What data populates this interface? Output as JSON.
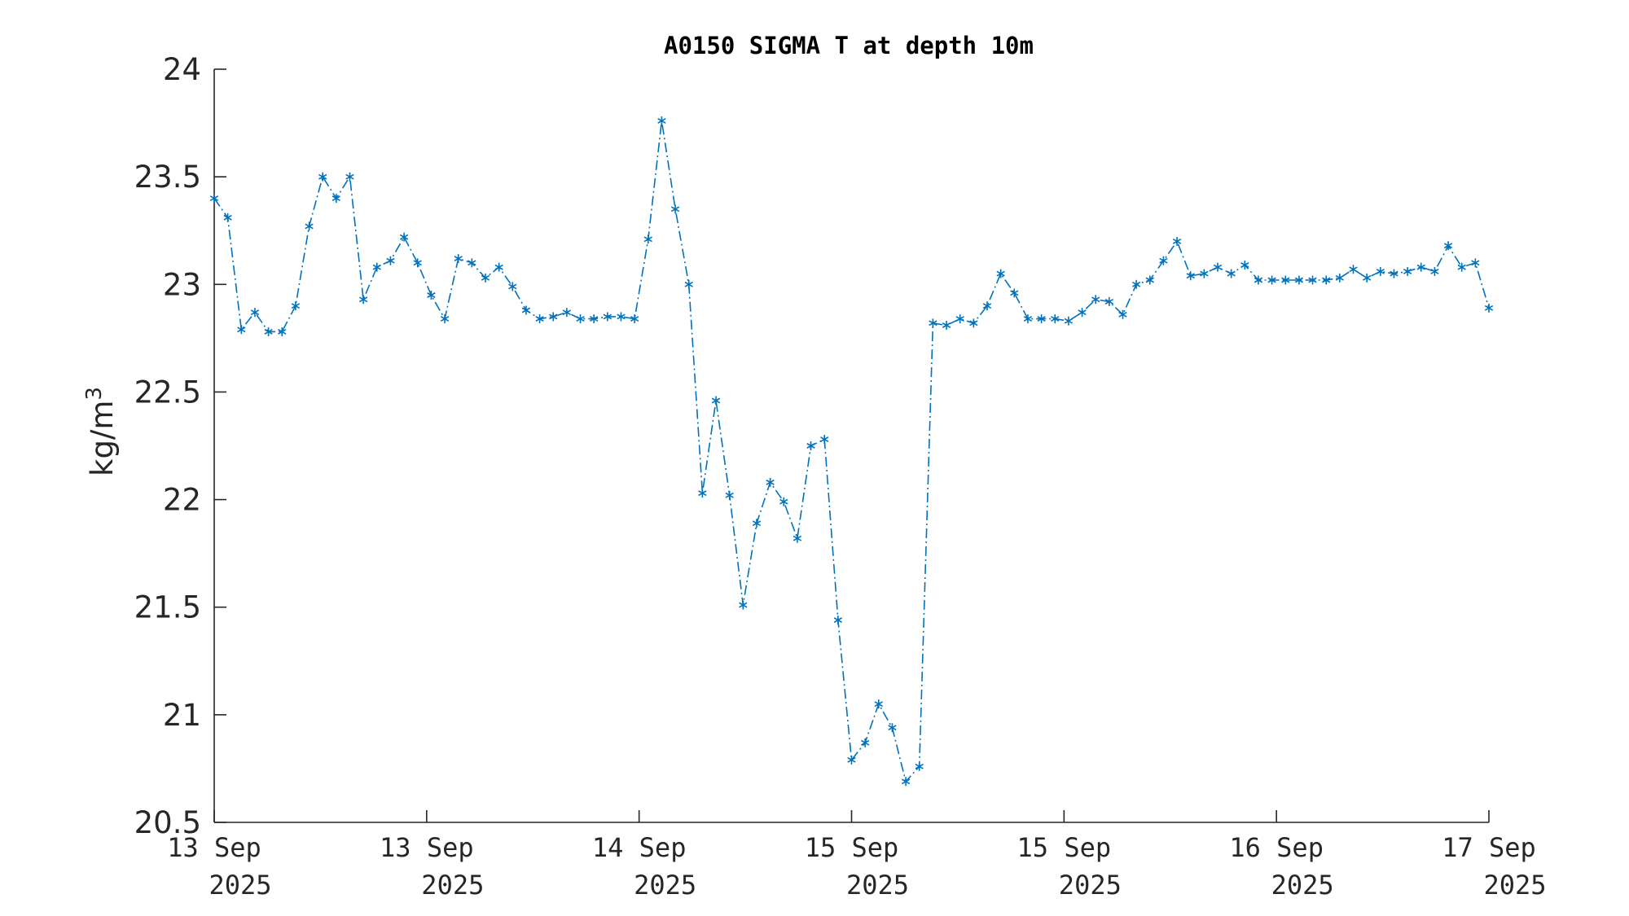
{
  "chart_data": {
    "type": "line",
    "title": "A0150 SIGMA T at depth 10m",
    "ylabel": "kg/m",
    "ylabel_superscript": "3",
    "ylim": [
      20.5,
      24
    ],
    "yticks": [
      "20.5",
      "21",
      "21.5",
      "22",
      "22.5",
      "23",
      "23.5",
      "24"
    ],
    "xticks": [
      {
        "day": "13 Sep",
        "year": "2025"
      },
      {
        "day": "13 Sep",
        "year": "2025"
      },
      {
        "day": "14 Sep",
        "year": "2025"
      },
      {
        "day": "15 Sep",
        "year": "2025"
      },
      {
        "day": "15 Sep",
        "year": "2025"
      },
      {
        "day": "16 Sep",
        "year": "2025"
      },
      {
        "day": "17 Sep",
        "year": "2025"
      }
    ],
    "grid": false,
    "line_style": "dash-dot",
    "marker": "asterisk",
    "color": "#0072BD",
    "series": [
      {
        "values": [
          23.4,
          23.31,
          22.79,
          22.87,
          22.78,
          22.78,
          22.9,
          23.27,
          23.5,
          23.4,
          23.5,
          22.93,
          23.08,
          23.11,
          23.22,
          23.1,
          22.95,
          22.84,
          23.12,
          23.1,
          23.03,
          23.08,
          22.99,
          22.88,
          22.84,
          22.85,
          22.87,
          22.84,
          22.84,
          22.85,
          22.85,
          22.84,
          23.21,
          23.76,
          23.35,
          23.0,
          22.03,
          22.46,
          22.02,
          21.51,
          21.89,
          22.08,
          21.99,
          21.82,
          22.25,
          22.28,
          21.44,
          20.79,
          20.87,
          21.05,
          20.94,
          20.69,
          20.76,
          22.82,
          22.81,
          22.84,
          22.82,
          22.9,
          23.05,
          22.96,
          22.84,
          22.84,
          22.84,
          22.83,
          22.87,
          22.93,
          22.92,
          22.86,
          23.0,
          23.02,
          23.11,
          23.2,
          23.04,
          23.05,
          23.08,
          23.05,
          23.09,
          23.02,
          23.02,
          23.02,
          23.02,
          23.02,
          23.02,
          23.03,
          23.07,
          23.03,
          23.06,
          23.05,
          23.06,
          23.08,
          23.06,
          23.18,
          23.08,
          23.1,
          22.89
        ]
      }
    ]
  }
}
